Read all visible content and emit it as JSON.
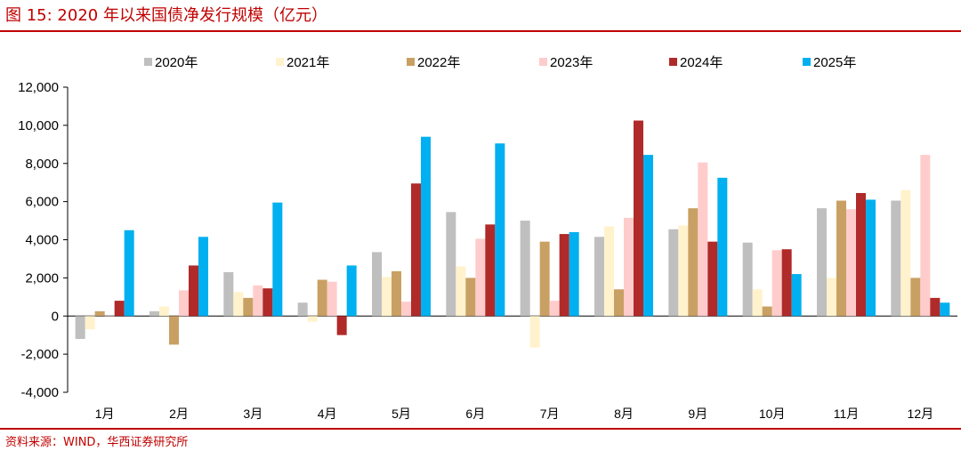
{
  "header": {
    "title": "图 15:  2020 年以来国债净发行规模（亿元）"
  },
  "footer": {
    "source": "资料来源：WIND，华西证券研究所"
  },
  "chart_data": {
    "type": "bar",
    "title": "2020 年以来国债净发行规模（亿元）",
    "xlabel": "",
    "ylabel": "",
    "ylim": [
      -4000,
      12000
    ],
    "yticks": [
      -4000,
      -2000,
      0,
      2000,
      4000,
      6000,
      8000,
      10000,
      12000
    ],
    "ytick_labels": [
      "-4,000",
      "-2,000",
      "0",
      "2,000",
      "4,000",
      "6,000",
      "8,000",
      "10,000",
      "12,000"
    ],
    "grid": false,
    "legend_position": "top",
    "categories": [
      "1月",
      "2月",
      "3月",
      "4月",
      "5月",
      "6月",
      "7月",
      "8月",
      "9月",
      "10月",
      "11月",
      "12月"
    ],
    "series": [
      {
        "name": "2020年",
        "color": "#bfbfbf",
        "values": [
          -1200,
          250,
          2300,
          700,
          3350,
          5450,
          5000,
          4150,
          4550,
          3850,
          5650,
          6050
        ]
      },
      {
        "name": "2021年",
        "color": "#fff2cc",
        "values": [
          -700,
          500,
          1250,
          -300,
          2050,
          2600,
          -1650,
          4700,
          4750,
          1400,
          2000,
          6600
        ]
      },
      {
        "name": "2022年",
        "color": "#c9a063",
        "values": [
          250,
          -1500,
          950,
          1900,
          2350,
          2000,
          3900,
          1400,
          5650,
          500,
          6050,
          2000
        ]
      },
      {
        "name": "2023年",
        "color": "#ffcccc",
        "values": [
          0,
          1350,
          1600,
          1800,
          750,
          4050,
          800,
          5150,
          8050,
          3450,
          5600,
          8450
        ]
      },
      {
        "name": "2024年",
        "color": "#b02a2a",
        "values": [
          800,
          2650,
          1450,
          -1000,
          6950,
          4800,
          4300,
          10250,
          3900,
          3500,
          6450,
          950
        ]
      },
      {
        "name": "2025年",
        "color": "#00b0f0",
        "values": [
          4500,
          4150,
          5950,
          2650,
          9400,
          9050,
          4400,
          8450,
          7250,
          2200,
          6100,
          700
        ]
      }
    ]
  }
}
